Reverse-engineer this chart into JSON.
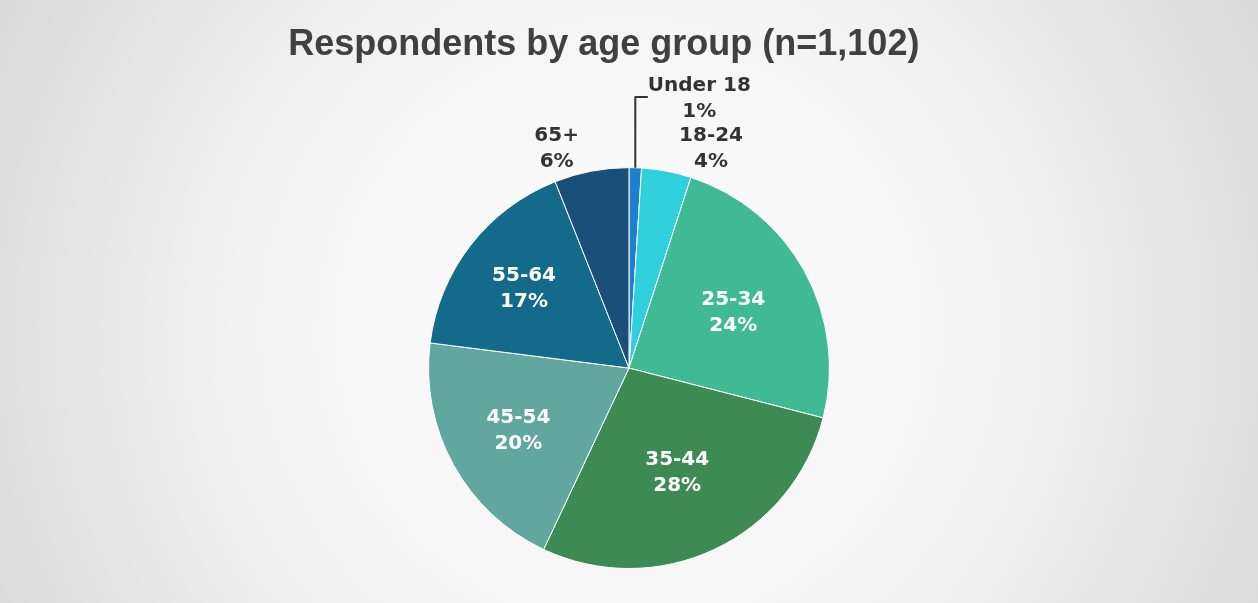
{
  "chart_data": {
    "type": "pie",
    "title": "Respondents by age group (n=1,102)",
    "categories": [
      "Under 18",
      "18-24",
      "25-34",
      "35-44",
      "45-54",
      "55-64",
      "65+"
    ],
    "values": [
      1,
      4,
      24,
      28,
      20,
      17,
      6
    ],
    "value_labels": [
      "1%",
      "4%",
      "24%",
      "28%",
      "20%",
      "17%",
      "6%"
    ],
    "colors": [
      "#1f7fcf",
      "#2fcfdc",
      "#3fba94",
      "#3e8a55",
      "#62a6a0",
      "#136a8a",
      "#1a4f7a"
    ],
    "legend": false
  }
}
